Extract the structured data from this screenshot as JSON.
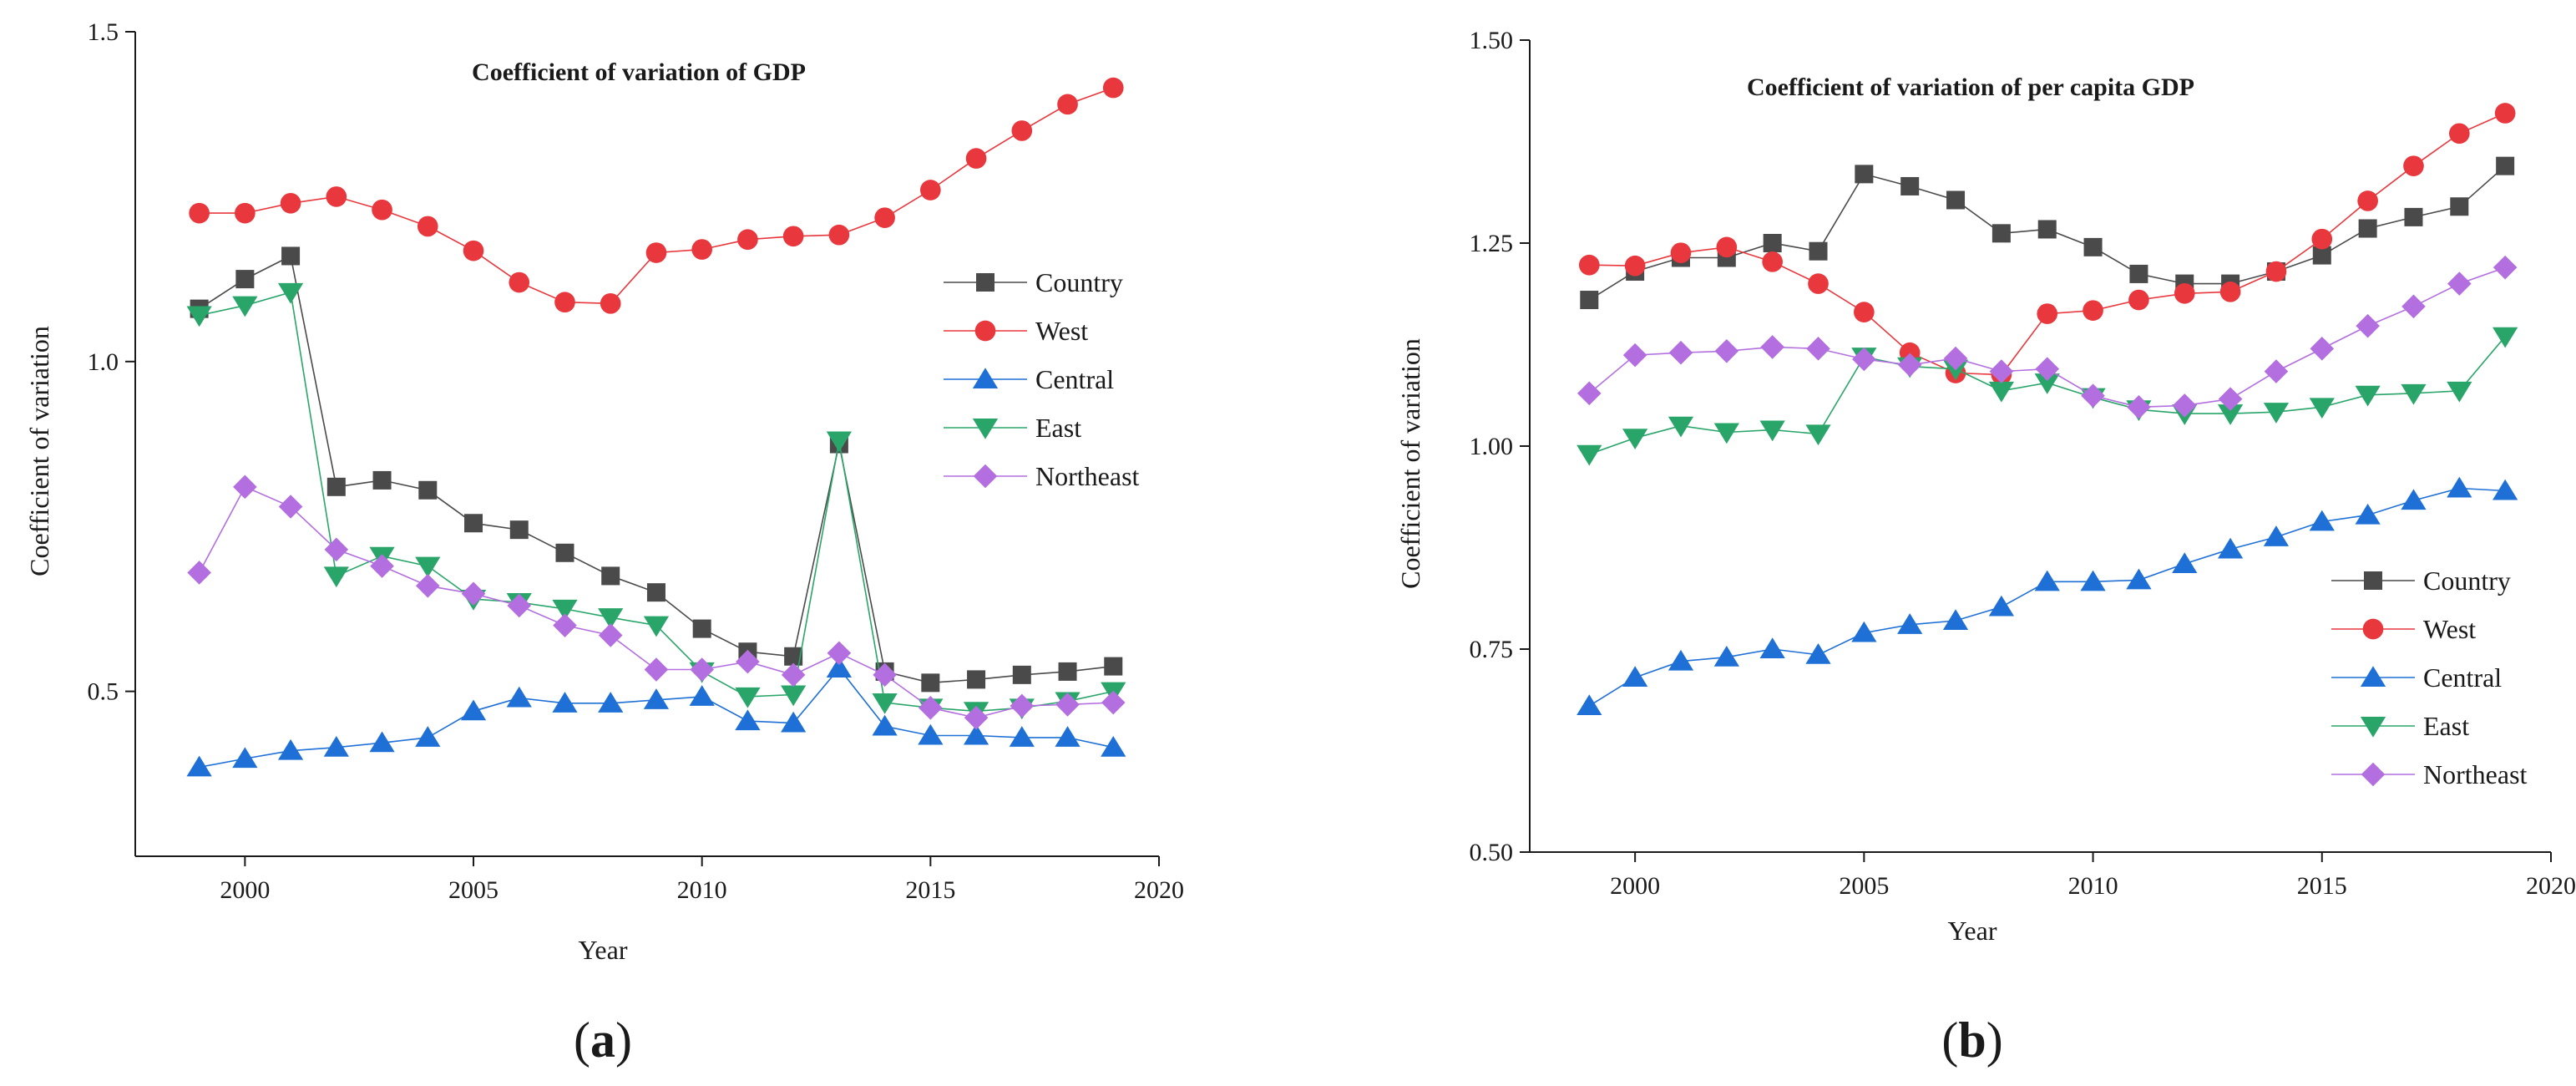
{
  "chart_data": [
    {
      "type": "line",
      "panel_label": "a",
      "title": "Coefficient of variation of GDP",
      "xlabel": "Year",
      "ylabel": "Coefficient of variation",
      "xlim": [
        1997.6,
        2020
      ],
      "ylim": [
        0.25,
        1.5
      ],
      "x_ticks": [
        2000,
        2005,
        2010,
        2015,
        2020
      ],
      "y_ticks": [
        0.5,
        1.0,
        1.5
      ],
      "y_tick_labels": [
        "0.5",
        "1.0",
        "1.5"
      ],
      "grid": false,
      "legend_position": "right",
      "x": [
        1999,
        2000,
        2001,
        2002,
        2003,
        2004,
        2005,
        2006,
        2007,
        2008,
        2009,
        2010,
        2011,
        2012,
        2013,
        2014,
        2015,
        2016,
        2017,
        2018,
        2019
      ],
      "series": [
        {
          "name": "Country",
          "color": "#4a4a4a",
          "marker": "square",
          "values": [
            1.08,
            1.125,
            1.16,
            0.81,
            0.82,
            0.805,
            0.755,
            0.745,
            0.71,
            0.675,
            0.65,
            0.595,
            0.56,
            0.553,
            0.875,
            0.53,
            0.513,
            0.518,
            0.525,
            0.53,
            0.538
          ]
        },
        {
          "name": "West",
          "color": "#e8373d",
          "marker": "circle",
          "values": [
            1.225,
            1.225,
            1.24,
            1.25,
            1.23,
            1.205,
            1.168,
            1.12,
            1.09,
            1.088,
            1.165,
            1.17,
            1.185,
            1.19,
            1.192,
            1.218,
            1.26,
            1.308,
            1.35,
            1.39,
            1.415
          ]
        },
        {
          "name": "Central",
          "color": "#1f70d6",
          "marker": "triangle-up",
          "values": [
            0.385,
            0.398,
            0.41,
            0.415,
            0.422,
            0.43,
            0.47,
            0.49,
            0.482,
            0.482,
            0.487,
            0.492,
            0.455,
            0.452,
            0.535,
            0.447,
            0.433,
            0.433,
            0.43,
            0.43,
            0.415
          ]
        },
        {
          "name": "East",
          "color": "#2aa56a",
          "marker": "triangle-down",
          "values": [
            1.07,
            1.085,
            1.105,
            0.675,
            0.705,
            0.69,
            0.64,
            0.635,
            0.625,
            0.612,
            0.6,
            0.53,
            0.492,
            0.495,
            0.88,
            0.483,
            0.475,
            0.47,
            0.475,
            0.485,
            0.5
          ]
        },
        {
          "name": "Northeast",
          "color": "#b36fe0",
          "marker": "diamond",
          "values": [
            0.68,
            0.81,
            0.78,
            0.715,
            0.69,
            0.66,
            0.648,
            0.63,
            0.6,
            0.585,
            0.533,
            0.533,
            0.545,
            0.525,
            0.558,
            0.525,
            0.475,
            0.46,
            0.478,
            0.48,
            0.483
          ]
        }
      ]
    },
    {
      "type": "line",
      "panel_label": "b",
      "title": "Coefficient of variation of per capita GDP",
      "xlabel": "Year",
      "ylabel": "Coefficient of variation",
      "xlim": [
        1997.7,
        2020
      ],
      "ylim": [
        0.5,
        1.5
      ],
      "x_ticks": [
        2000,
        2005,
        2010,
        2015,
        2020
      ],
      "y_ticks": [
        0.5,
        0.75,
        1.0,
        1.25,
        1.5
      ],
      "y_tick_labels": [
        "0.50",
        "0.75",
        "1.00",
        "1.25",
        "1.50"
      ],
      "grid": false,
      "legend_position": "bottom-right",
      "x": [
        1999,
        2000,
        2001,
        2002,
        2003,
        2004,
        2005,
        2006,
        2007,
        2008,
        2009,
        2010,
        2011,
        2012,
        2013,
        2014,
        2015,
        2016,
        2017,
        2018,
        2019
      ],
      "series": [
        {
          "name": "Country",
          "color": "#4a4a4a",
          "marker": "square",
          "values": [
            1.18,
            1.215,
            1.232,
            1.232,
            1.25,
            1.24,
            1.335,
            1.32,
            1.303,
            1.262,
            1.267,
            1.245,
            1.212,
            1.2,
            1.2,
            1.215,
            1.235,
            1.268,
            1.282,
            1.295,
            1.345
          ]
        },
        {
          "name": "West",
          "color": "#e8373d",
          "marker": "circle",
          "values": [
            1.223,
            1.222,
            1.238,
            1.245,
            1.227,
            1.2,
            1.165,
            1.115,
            1.09,
            1.088,
            1.163,
            1.167,
            1.18,
            1.188,
            1.19,
            1.215,
            1.255,
            1.302,
            1.345,
            1.385,
            1.41
          ]
        },
        {
          "name": "Central",
          "color": "#1f70d6",
          "marker": "triangle-up",
          "values": [
            0.68,
            0.715,
            0.735,
            0.74,
            0.75,
            0.743,
            0.77,
            0.78,
            0.785,
            0.802,
            0.833,
            0.833,
            0.835,
            0.855,
            0.873,
            0.888,
            0.907,
            0.915,
            0.933,
            0.948,
            0.945
          ]
        },
        {
          "name": "East",
          "color": "#2aa56a",
          "marker": "triangle-down",
          "values": [
            0.99,
            1.01,
            1.025,
            1.017,
            1.02,
            1.015,
            1.11,
            1.098,
            1.095,
            1.068,
            1.078,
            1.06,
            1.045,
            1.04,
            1.04,
            1.042,
            1.048,
            1.063,
            1.065,
            1.068,
            1.135
          ]
        },
        {
          "name": "Northeast",
          "color": "#b36fe0",
          "marker": "diamond",
          "values": [
            1.065,
            1.112,
            1.115,
            1.117,
            1.122,
            1.12,
            1.107,
            1.1,
            1.108,
            1.092,
            1.095,
            1.062,
            1.048,
            1.05,
            1.058,
            1.092,
            1.12,
            1.148,
            1.172,
            1.2,
            1.22
          ]
        }
      ]
    }
  ]
}
